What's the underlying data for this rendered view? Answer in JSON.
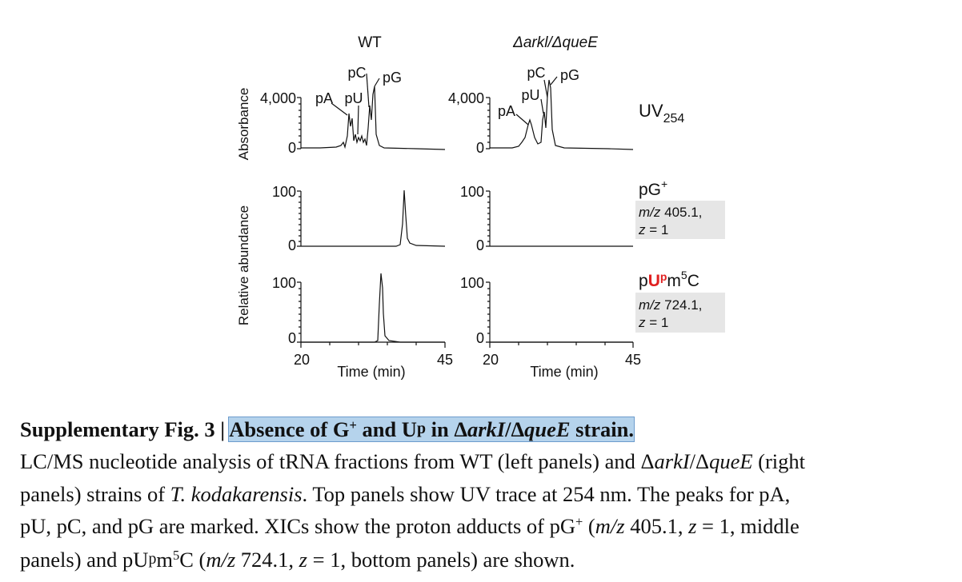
{
  "figure": {
    "col_titles": [
      "WT",
      "Δarkl/ΔqueE"
    ],
    "row_labels": {
      "uv": "UV",
      "uv_sub": "254",
      "pg_main": "pG",
      "pg_sup": "+",
      "pu_pre": "p",
      "pu_red": "U",
      "pu_sup_p": "p",
      "pu_m": "m",
      "pu_sup5": "5",
      "pu_c": "C"
    },
    "xic_boxes": [
      {
        "mz_label": "m/z",
        "mz_value": " 405.1,",
        "z_label": "z",
        "z_value": " = 1"
      },
      {
        "mz_label": "m/z",
        "mz_value": " 724.1,",
        "z_label": "z",
        "z_value": " = 1"
      }
    ],
    "y_axis_titles": {
      "top": "Absorbance",
      "bottom": "Relative abundance"
    },
    "x_axis": {
      "title": "Time (min)",
      "ticks": [
        "20",
        "45"
      ]
    },
    "uv_ticks": [
      "4,000",
      "0"
    ],
    "ms_ticks": [
      "100",
      "0"
    ],
    "wt_peak_labels": [
      "pA",
      "pU",
      "pC",
      "pG"
    ],
    "ko_peak_labels": [
      "pA",
      "pU",
      "pC",
      "pG"
    ],
    "colors": {
      "trace": "#000000",
      "highlight": "#b5d3ec",
      "red": "#e02020",
      "box": "#e6e6e6"
    }
  },
  "caption": {
    "title_part1": "Supplementary Fig. 3 | ",
    "title_hl_a": "Absence of G",
    "title_hl_sup": "+",
    "title_hl_b": " and U",
    "title_hl_p": "p",
    "title_hl_c": " in Δ",
    "title_hl_i1": "arkI",
    "title_hl_d": "/Δ",
    "title_hl_i2": "queE",
    "title_hl_e": " strain.",
    "l1a": "LC/MS nucleotide analysis of tRNA fractions from WT (left panels) and Δ",
    "l1i1": "arkI",
    "l1b": "/Δ",
    "l1i2": "queE",
    "l1c": " (right",
    "l2a": "panels) strains of ",
    "l2i": "T. kodakarensis",
    "l2b": ". Top panels show UV trace at 254 nm. The peaks for pA,",
    "l3a": "pU, pC, and pG are marked. XICs show the proton adducts of pG",
    "l3sup": "+",
    "l3b": " (",
    "l3i1": "m/z",
    "l3c": " 405.1, ",
    "l3i2": "z",
    "l3d": " = 1, middle",
    "l4a": "panels) and pU",
    "l4p": "p",
    "l4b": "m",
    "l4sup": "5",
    "l4c": "C (",
    "l4i1": "m/z",
    "l4d": " 724.1, ",
    "l4i2": "z",
    "l4e": " = 1, bottom panels) are shown."
  }
}
